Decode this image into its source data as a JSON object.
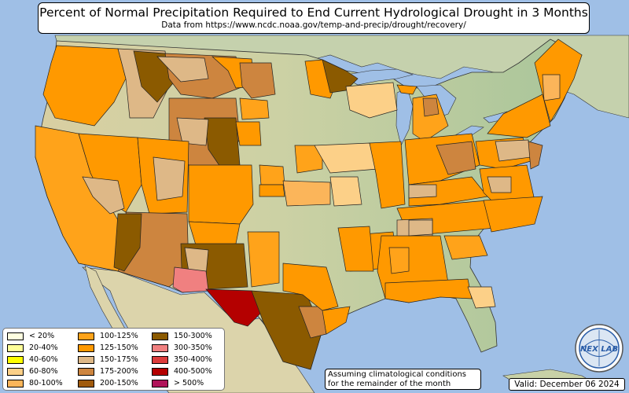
{
  "title": "Percent of Normal Precipitation Required to End Current Hydrological Drought in 3 Months",
  "subtitle": "Data from https://www.ncdc.noaa.gov/temp-and-precip/drought/recovery/",
  "legend": [
    {
      "label": "< 20%",
      "color": "#ffffe0"
    },
    {
      "label": "20-40%",
      "color": "#ffff99"
    },
    {
      "label": "40-60%",
      "color": "#ffff00"
    },
    {
      "label": "60-80%",
      "color": "#fcd088"
    },
    {
      "label": "80-100%",
      "color": "#fbb55a"
    },
    {
      "label": "100-125%",
      "color": "#ffa31a"
    },
    {
      "label": "125-150%",
      "color": "#ff9900"
    },
    {
      "label": "150-175%",
      "color": "#deb887"
    },
    {
      "label": "175-200%",
      "color": "#cd853f"
    },
    {
      "label": "200-150%",
      "color": "#a05a0c"
    },
    {
      "label": "150-300%",
      "color": "#8b5a00"
    },
    {
      "label": "300-350%",
      "color": "#f08080"
    },
    {
      "label": "350-400%",
      "color": "#dc3c3c"
    },
    {
      "label": "400-500%",
      "color": "#b40000"
    },
    {
      "label": "> 500%",
      "color": "#b0145a"
    }
  ],
  "note": {
    "line1": "Assuming climatological conditions",
    "line2": "for the remainder of the month"
  },
  "valid": "Valid: December 06 2024",
  "logo_text": "NEX LAB",
  "colors": {
    "ocean": "#9fbfe6",
    "land_plain": "#c8cfa0",
    "land_green": "#a9c29a",
    "mexico": "#dcd6b0",
    "canada": "#c9d3b2"
  }
}
